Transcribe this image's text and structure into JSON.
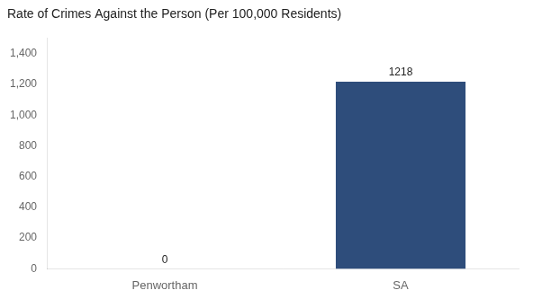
{
  "chart_data": {
    "type": "bar",
    "title": "Rate of Crimes Against the Person (Per 100,000 Residents)",
    "categories": [
      "Penwortham",
      "SA"
    ],
    "values": [
      0,
      1218
    ],
    "color": "#2e4d7b",
    "ylim": [
      0,
      1500
    ],
    "yticks": [
      0,
      200,
      400,
      600,
      800,
      1000,
      1200,
      1400
    ],
    "grid": false,
    "data_labels": true
  }
}
